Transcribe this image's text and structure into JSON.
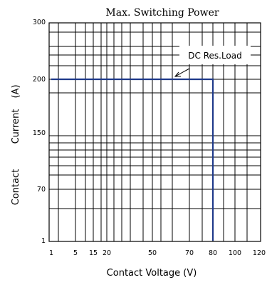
{
  "chart_data": {
    "type": "line",
    "title": "Max. Switching Power",
    "xlabel": "Contact Voltage (V)",
    "ylabel_words": [
      "Contact",
      "Current",
      "(A)"
    ],
    "x_ticks": [
      "1",
      "5",
      "15",
      "20",
      "50",
      "70",
      "80",
      "100",
      "120"
    ],
    "y_ticks": [
      "1",
      "70",
      "150",
      "200",
      "300"
    ],
    "grid": true,
    "annotation": "DC Res.Load",
    "series": [
      {
        "x": [
          "1",
          "80",
          "80"
        ],
        "y": [
          200,
          200,
          1
        ],
        "color": "#1f3a8a"
      }
    ]
  }
}
